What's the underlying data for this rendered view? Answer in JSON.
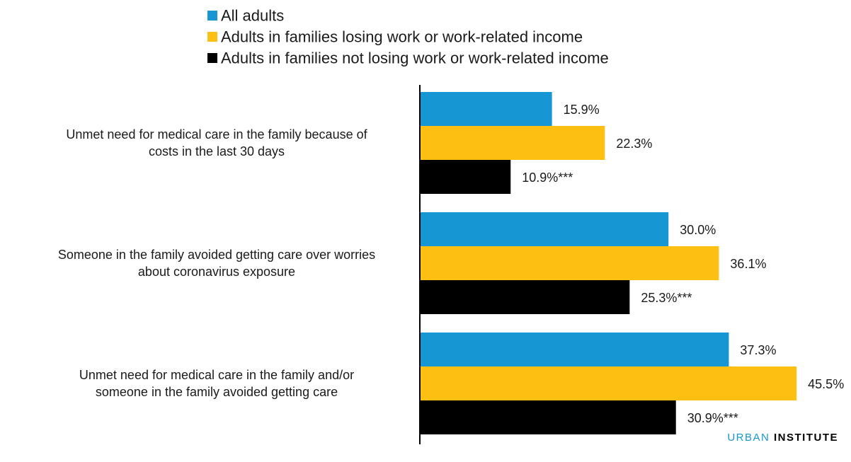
{
  "brand": {
    "part1": "URBAN",
    "part2": "INSTITUTE"
  },
  "chart_data": {
    "type": "bar",
    "orientation": "horizontal",
    "categories": [
      [
        "Unmet need for medical care in the family because of",
        "costs in the last 30 days"
      ],
      [
        "Someone in the family avoided getting care over worries",
        "about coronavirus exposure"
      ],
      [
        "Unmet need for medical care in the family and/or",
        "someone in the family avoided getting care"
      ]
    ],
    "series": [
      {
        "name": "All adults",
        "color": "#1696d2",
        "values": [
          15.9,
          30.0,
          37.3
        ],
        "labels": [
          "15.9%",
          "30.0%",
          "37.3%"
        ]
      },
      {
        "name": "Adults in families losing work or work-related income",
        "color": "#fdbf11",
        "values": [
          22.3,
          36.1,
          45.5
        ],
        "labels": [
          "22.3%",
          "36.1%",
          "45.5%"
        ]
      },
      {
        "name": "Adults in families not losing work or work-related income",
        "color": "#000000",
        "values": [
          10.9,
          25.3,
          30.9
        ],
        "labels": [
          "10.9%***",
          "25.3%***",
          "30.9%***"
        ]
      }
    ],
    "xlim": [
      0,
      46
    ],
    "grid": false,
    "legend_position": "top"
  }
}
